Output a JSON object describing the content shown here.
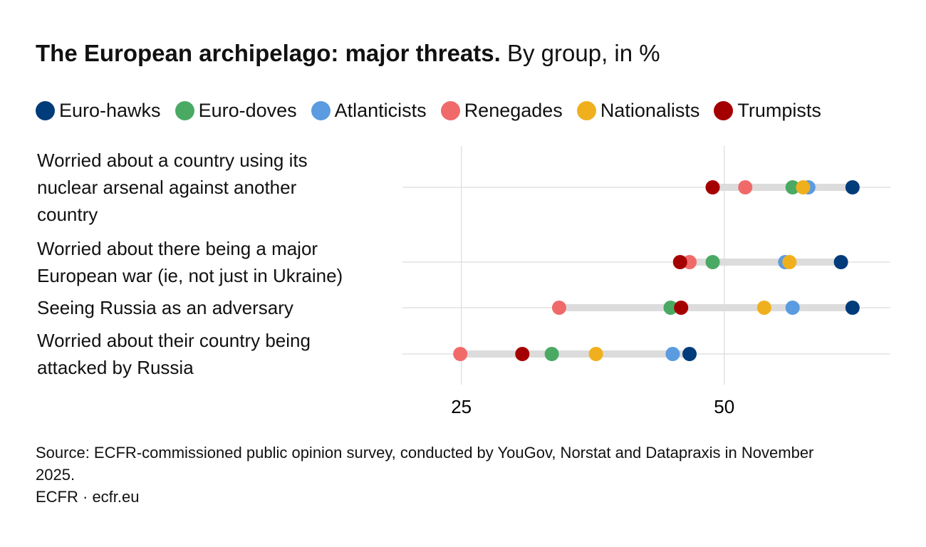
{
  "chart_data": {
    "type": "dot",
    "title": "The European archipelago: major threats.",
    "subtitle": "By group, in %",
    "categories": [
      "Worried about a country using its nuclear arsenal against another country",
      "Worried about there being a major European war (ie, not just in Ukraine)",
      "Seeing Russia as an adversary",
      "Worried about their country being attacked by Russia"
    ],
    "series": [
      {
        "name": "Euro-hawks",
        "color": "#003b7a",
        "values": [
          62.2,
          61.1,
          62.2,
          46.7
        ]
      },
      {
        "name": "Euro-doves",
        "color": "#4aaa64",
        "values": [
          56.5,
          48.9,
          44.9,
          33.6
        ]
      },
      {
        "name": "Atlanticists",
        "color": "#5b9be0",
        "values": [
          58.0,
          55.8,
          56.5,
          45.1
        ]
      },
      {
        "name": "Renegades",
        "color": "#f06a6a",
        "values": [
          52.0,
          46.7,
          34.3,
          24.9
        ]
      },
      {
        "name": "Nationalists",
        "color": "#f0b01e",
        "values": [
          57.5,
          56.2,
          53.8,
          37.8
        ]
      },
      {
        "name": "Trumpists",
        "color": "#a50000",
        "values": [
          48.9,
          45.8,
          45.9,
          30.8
        ]
      }
    ],
    "xlim": [
      19.4,
      65.8
    ],
    "xticks": [
      25,
      50
    ],
    "grid": true,
    "source": "Source: ECFR-commissioned public opinion survey, conducted by YouGov, Norstat and Datapraxis in November 2025.",
    "credit": "ECFR · ecfr.eu"
  }
}
